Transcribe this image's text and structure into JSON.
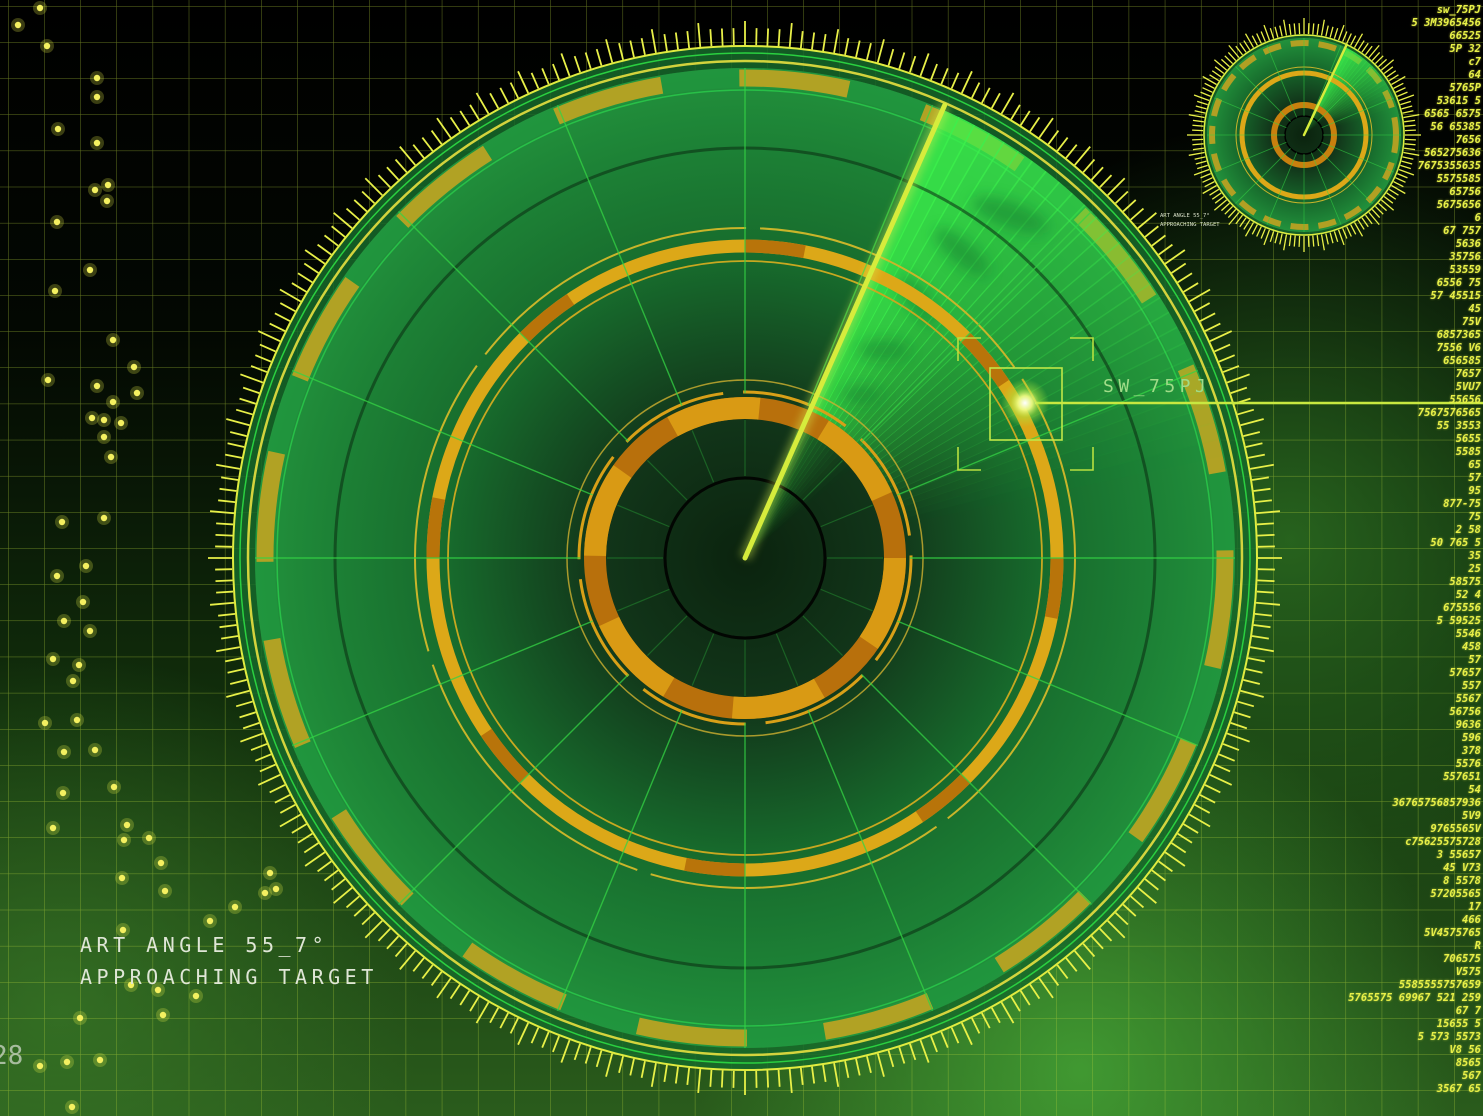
{
  "hud": {
    "angle_label": "ART ANGLE 55_7°",
    "status_label": "APPROACHING TARGET",
    "corner_number": "28"
  },
  "target": {
    "id": "SW_75PJ"
  },
  "mini_radar": {
    "angle_label": "ART ANGLE 55_7°",
    "status_label": "APPROACHING TARGET"
  },
  "data_stream": {
    "lines": [
      "sw_75PJ",
      "5 3M3965456",
      "66525",
      "5P 32",
      "c7",
      "64",
      "5765P",
      "53615 5",
      "6565 6575",
      "56 65385",
      "7656",
      "565275636",
      "7675355635",
      "5575585",
      "65756",
      "5675656",
      "6",
      "67 757",
      "5636",
      "35756",
      "53559",
      "6556 75",
      "57 45515",
      "45",
      "75V",
      "6857365",
      "7556 V6",
      "656585",
      "7657",
      "5VU7",
      "55656",
      "7567576565",
      "55 3553",
      "5655",
      "5585",
      "65",
      "57",
      "95",
      "877-75",
      "75",
      "2 58",
      "50 765 5",
      "35",
      "25",
      "58575",
      "52 4",
      "675556",
      "5 59525",
      "5546",
      "458",
      "57",
      "57657",
      "557",
      "5567",
      "56756",
      "9636",
      "596",
      "378",
      "5576",
      "557651",
      "54",
      "36765756857936",
      "5V9",
      "9765565V",
      "c75625575728",
      "3 55657",
      "45 V73",
      "8 5578",
      "57205565",
      "17",
      "466",
      "5V4575765",
      "R",
      "706575",
      "V575",
      "5585555757659",
      "5765575 69967 521 259",
      "67 7",
      "15655 5",
      "5 573 5573",
      "V8 56",
      "8565",
      "567",
      "3567 65"
    ]
  },
  "colors": {
    "accent": "#e8f048",
    "radar_green": "#1f8a3a",
    "sweep_green": "#3cf04c",
    "spoke_green": "#34d444",
    "ring_orange": "#d8a018",
    "grid": "#b4d23a"
  }
}
